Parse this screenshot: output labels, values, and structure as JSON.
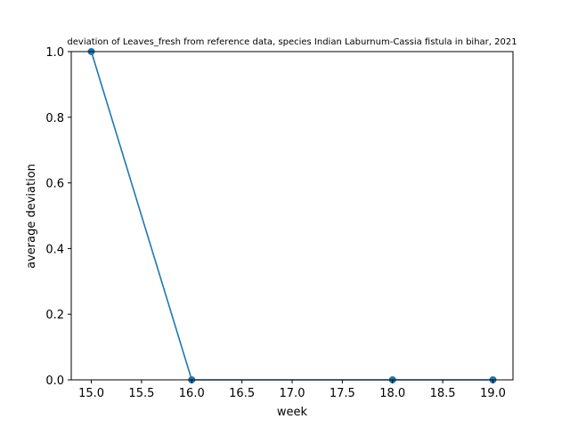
{
  "chart_data": {
    "type": "line",
    "title": "deviation of Leaves_fresh from reference data, species Indian Laburnum-Cassia fistula in bihar, 2021",
    "xlabel": "week",
    "ylabel": "average deviation",
    "xlim": [
      14.8,
      19.2
    ],
    "ylim": [
      0.0,
      1.0
    ],
    "x_ticks": [
      "15.0",
      "15.5",
      "16.0",
      "16.5",
      "17.0",
      "17.5",
      "18.0",
      "18.5",
      "19.0"
    ],
    "y_ticks": [
      "0.0",
      "0.2",
      "0.4",
      "0.6",
      "0.8",
      "1.0"
    ],
    "grid": false,
    "series": [
      {
        "x": [
          15,
          16,
          18,
          19
        ],
        "y": [
          1.0,
          0.0,
          0.0,
          0.0
        ],
        "color": "#1f77b4",
        "marker": "circle"
      }
    ]
  }
}
